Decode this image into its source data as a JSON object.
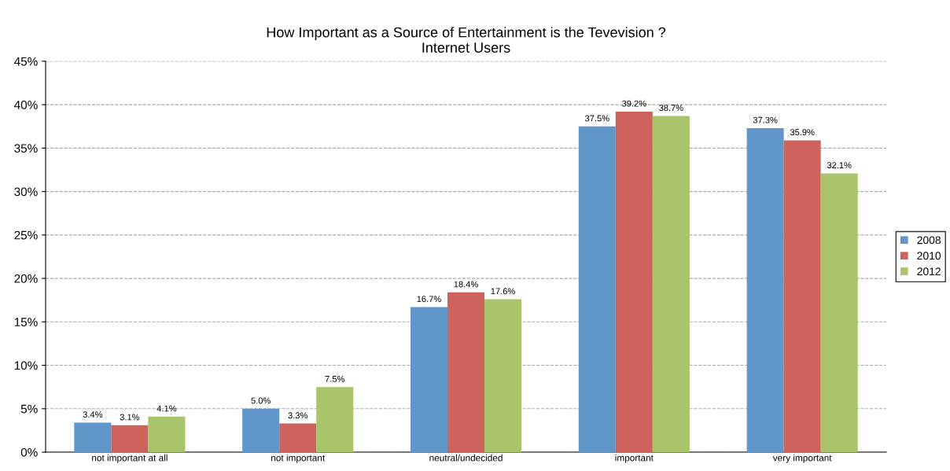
{
  "chart_data": {
    "type": "bar",
    "title": "How Important as a Source of Entertainment is the Tevevision ?",
    "subtitle": "Internet Users",
    "categories": [
      "not important at all",
      "not important",
      "neutral/undecided",
      "important",
      "very important"
    ],
    "series": [
      {
        "name": "2008",
        "color": "#6096c9",
        "values": [
          3.4,
          5.0,
          16.7,
          37.5,
          37.3
        ],
        "value_labels": [
          "3.4%",
          "5.0%",
          "16.7%",
          "37.5%",
          "37.3%"
        ]
      },
      {
        "name": "2010",
        "color": "#cd635c",
        "values": [
          3.1,
          3.3,
          18.4,
          39.2,
          35.9
        ],
        "value_labels": [
          "3.1%",
          "3.3%",
          "18.4%",
          "39.2%",
          "35.9%"
        ]
      },
      {
        "name": "2012",
        "color": "#a9c46a",
        "values": [
          4.1,
          7.5,
          17.6,
          38.7,
          32.1
        ],
        "value_labels": [
          "4.1%",
          "7.5%",
          "17.6%",
          "38.7%",
          "32.1%"
        ]
      }
    ],
    "ylim": [
      0,
      45
    ],
    "yticks": [
      {
        "value": 0,
        "label": "0%"
      },
      {
        "value": 5,
        "label": "5%"
      },
      {
        "value": 10,
        "label": "10%"
      },
      {
        "value": 15,
        "label": "15%"
      },
      {
        "value": 20,
        "label": "20%"
      },
      {
        "value": 25,
        "label": "25%"
      },
      {
        "value": 30,
        "label": "30%"
      },
      {
        "value": 35,
        "label": "35%"
      },
      {
        "value": 40,
        "label": "40%"
      },
      {
        "value": 45,
        "label": "45%"
      }
    ],
    "grid": "y",
    "legend": "right"
  }
}
